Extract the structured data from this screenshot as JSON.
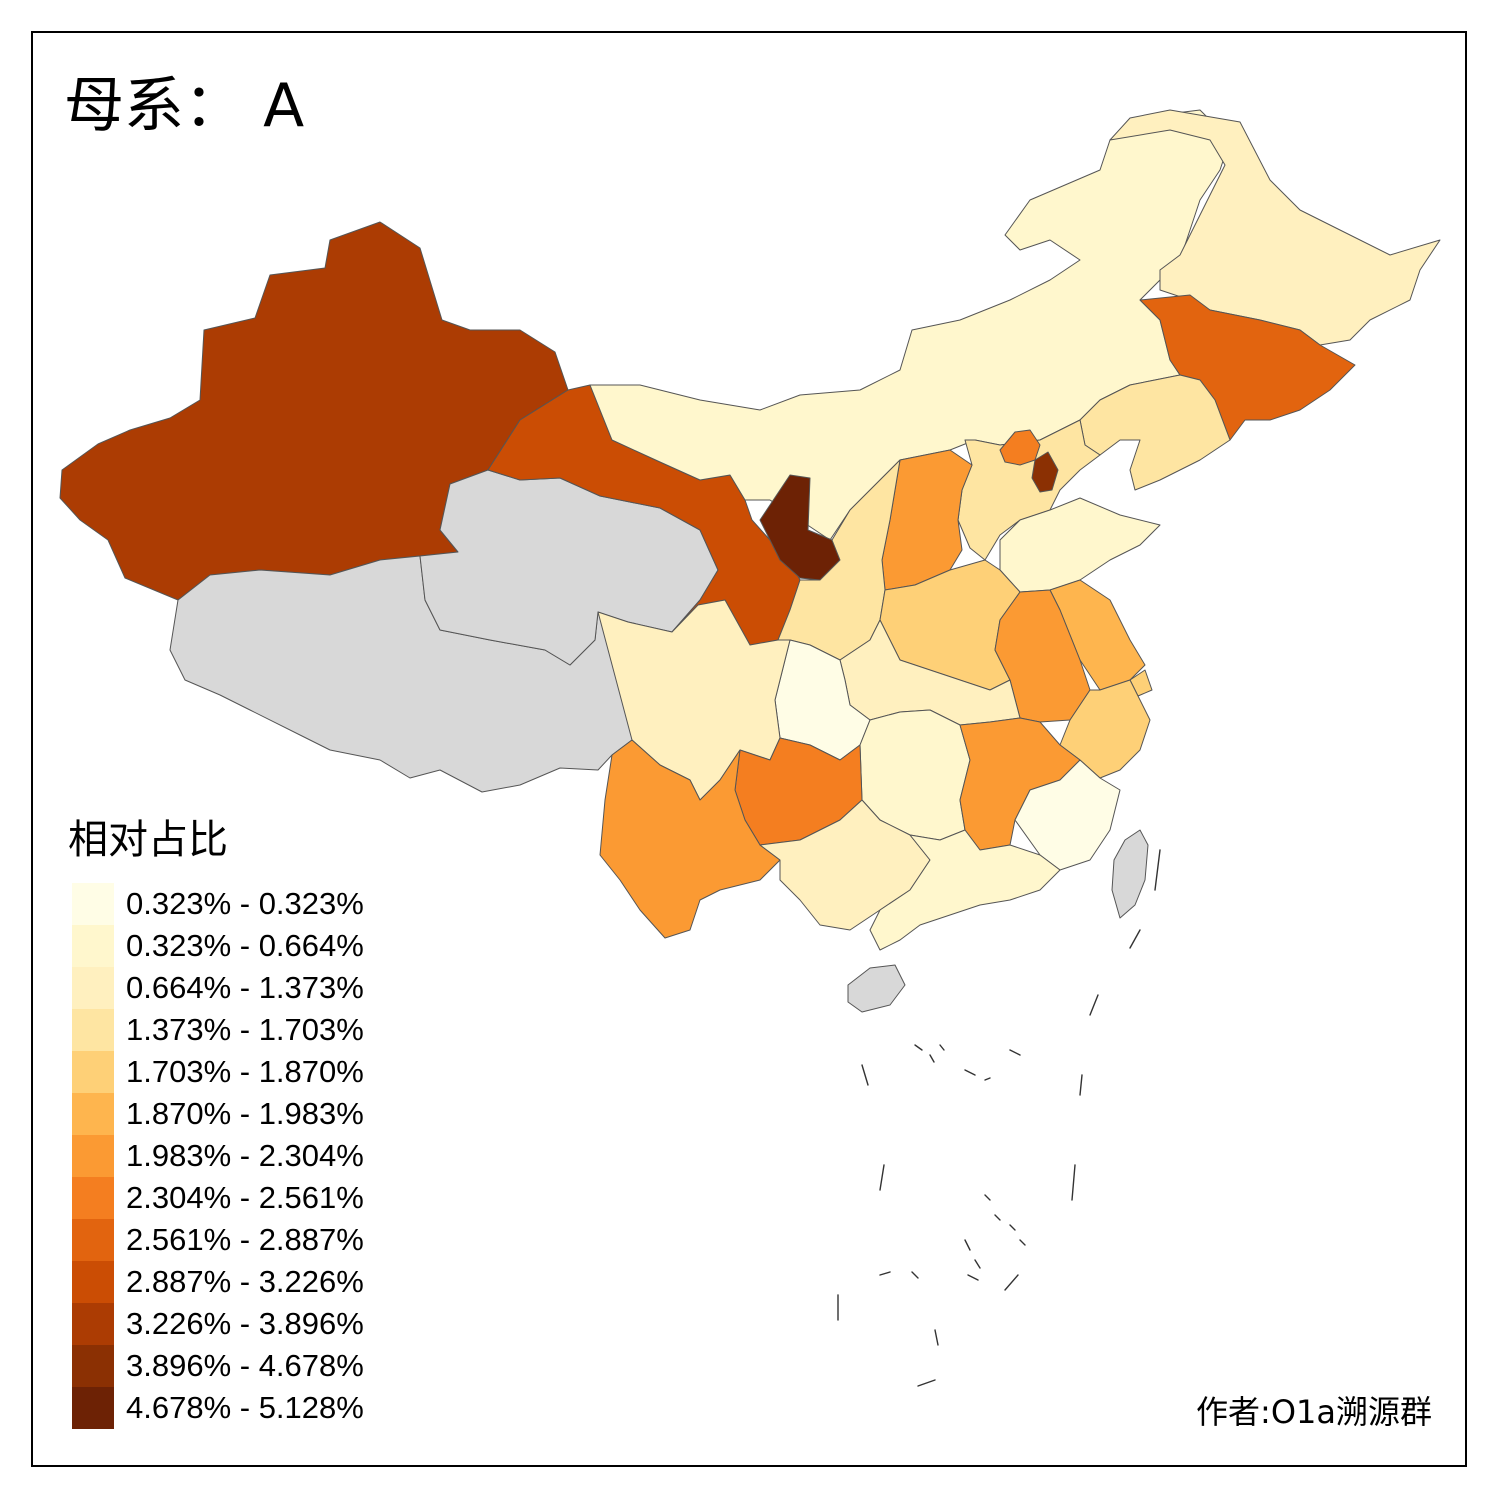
{
  "title": "母系： A",
  "author": "作者:O1a溯源群",
  "legend": {
    "title": "相对占比",
    "classes": [
      {
        "label": "0.323% - 0.323%",
        "color": "#fffde6"
      },
      {
        "label": "0.323% - 0.664%",
        "color": "#fff7cd"
      },
      {
        "label": "0.664% - 1.373%",
        "color": "#fff0bf"
      },
      {
        "label": "1.373% - 1.703%",
        "color": "#fee5a2"
      },
      {
        "label": "1.703% - 1.870%",
        "color": "#fed077"
      },
      {
        "label": "1.870% - 1.983%",
        "color": "#feb54e"
      },
      {
        "label": "1.983% - 2.304%",
        "color": "#fb9a33"
      },
      {
        "label": "2.304% - 2.561%",
        "color": "#f47e20"
      },
      {
        "label": "2.561% - 2.887%",
        "color": "#e2640f"
      },
      {
        "label": "2.887% - 3.226%",
        "color": "#cb4d04"
      },
      {
        "label": "3.226% - 3.896%",
        "color": "#ac3c03"
      },
      {
        "label": "3.896% - 4.678%",
        "color": "#8b3003"
      },
      {
        "label": "4.678% - 5.128%",
        "color": "#6d2205"
      }
    ]
  },
  "no_data_color": "#d8d8d8",
  "provinces": [
    {
      "name": "xinjiang",
      "class": 10
    },
    {
      "name": "tibet",
      "class": null
    },
    {
      "name": "qinghai",
      "class": null
    },
    {
      "name": "gansu",
      "class": 9
    },
    {
      "name": "inner-mongolia",
      "class": 1
    },
    {
      "name": "heilongjiang",
      "class": 2
    },
    {
      "name": "jilin",
      "class": 8
    },
    {
      "name": "liaoning",
      "class": 3
    },
    {
      "name": "hebei",
      "class": 3
    },
    {
      "name": "beijing",
      "class": 7
    },
    {
      "name": "tianjin",
      "class": 11
    },
    {
      "name": "shandong",
      "class": 1
    },
    {
      "name": "shanxi",
      "class": 6
    },
    {
      "name": "ningxia",
      "class": 12
    },
    {
      "name": "shaanxi",
      "class": 3
    },
    {
      "name": "henan",
      "class": 4
    },
    {
      "name": "jiangsu",
      "class": 5
    },
    {
      "name": "anhui",
      "class": 6
    },
    {
      "name": "shanghai",
      "class": 4
    },
    {
      "name": "zhejiang",
      "class": 4
    },
    {
      "name": "hubei",
      "class": 2
    },
    {
      "name": "chongqing",
      "class": 0
    },
    {
      "name": "sichuan",
      "class": 2
    },
    {
      "name": "hunan",
      "class": 1
    },
    {
      "name": "jiangxi",
      "class": 6
    },
    {
      "name": "fujian",
      "class": 0
    },
    {
      "name": "guizhou",
      "class": 7
    },
    {
      "name": "yunnan",
      "class": 6
    },
    {
      "name": "guangxi",
      "class": 2
    },
    {
      "name": "guangdong",
      "class": 1
    },
    {
      "name": "hainan",
      "class": null
    },
    {
      "name": "taiwan",
      "class": null
    }
  ]
}
